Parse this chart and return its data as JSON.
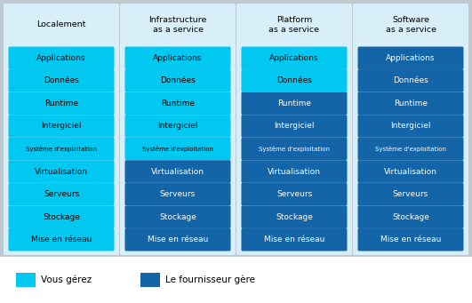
{
  "columns": [
    {
      "title": "Localement",
      "items": [
        "Applications",
        "Données",
        "Runtime",
        "Intergiciel",
        "Système d'exploitation",
        "Virtualisation",
        "Serveurs",
        "Stockage",
        "Mise en réseau"
      ],
      "managed_by_provider": [
        false,
        false,
        false,
        false,
        false,
        false,
        false,
        false,
        false
      ]
    },
    {
      "title": "Infrastructure\nas a service",
      "items": [
        "Applications",
        "Données",
        "Runtime",
        "Intergiciel",
        "Système d'exploitation",
        "Virtualisation",
        "Serveurs",
        "Stockage",
        "Mise en réseau"
      ],
      "managed_by_provider": [
        false,
        false,
        false,
        false,
        false,
        true,
        true,
        true,
        true
      ]
    },
    {
      "title": "Platform\nas a service",
      "items": [
        "Applications",
        "Données",
        "Runtime",
        "Intergiciel",
        "Système d'exploitation",
        "Virtualisation",
        "Serveurs",
        "Stockage",
        "Mise en réseau"
      ],
      "managed_by_provider": [
        false,
        false,
        true,
        true,
        true,
        true,
        true,
        true,
        true
      ]
    },
    {
      "title": "Software\nas a service",
      "items": [
        "Applications",
        "Données",
        "Runtime",
        "Intergiciel",
        "Système d'exploitation",
        "Virtualisation",
        "Serveurs",
        "Stockage",
        "Mise en réseau"
      ],
      "managed_by_provider": [
        true,
        true,
        true,
        true,
        true,
        true,
        true,
        true,
        true
      ]
    }
  ],
  "color_user": "#00C8F0",
  "color_provider": "#1464A8",
  "color_text_user": "#000000",
  "color_text_provider": "#FFFFFF",
  "color_background": "#C0C8D0",
  "color_column_bg": "#D8EEF8",
  "color_legend_bg": "#FFFFFF",
  "legend_user_label": "Vous gérez",
  "legend_provider_label": "Le fournisseur gère",
  "fig_width": 5.31,
  "fig_height": 3.41,
  "dpi": 100
}
